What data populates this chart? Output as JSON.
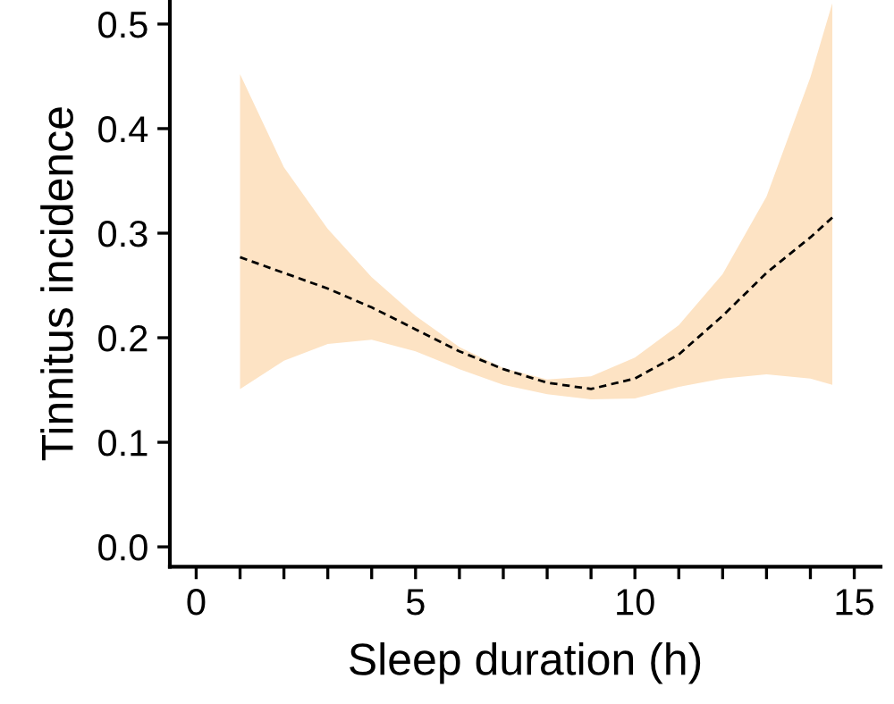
{
  "chart_data": {
    "type": "line",
    "xlabel": "Sleep duration (h)",
    "ylabel": "Tinnitus incidence",
    "xlim": [
      -0.6,
      15.6
    ],
    "ylim": [
      -0.019,
      0.523
    ],
    "xticks": [
      0,
      {
        "value": 1,
        "label": null
      },
      {
        "value": 2,
        "label": null
      },
      {
        "value": 3,
        "label": null
      },
      {
        "value": 4,
        "label": null
      },
      5,
      {
        "value": 6,
        "label": null
      },
      {
        "value": 7,
        "label": null
      },
      {
        "value": 8,
        "label": null
      },
      {
        "value": 9,
        "label": null
      },
      10,
      {
        "value": 11,
        "label": null
      },
      {
        "value": 12,
        "label": null
      },
      {
        "value": 13,
        "label": null
      },
      {
        "value": 14,
        "label": null
      },
      15
    ],
    "yticks": [
      {
        "value": 0,
        "label": "0.0"
      },
      0.1,
      0.2,
      0.3,
      0.4,
      0.5
    ],
    "grid": false,
    "legend": false,
    "marker": "none",
    "line_style": "dashed",
    "series": [
      {
        "color": "#000000",
        "x": [
          1,
          2,
          3,
          4,
          5,
          6,
          7,
          8,
          9,
          10,
          11,
          12,
          13,
          14,
          14.5
        ],
        "values": [
          0.277,
          0.262,
          0.247,
          0.229,
          0.208,
          0.187,
          0.17,
          0.157,
          0.151,
          0.161,
          0.184,
          0.221,
          0.262,
          0.296,
          0.315
        ],
        "lower": [
          0.151,
          0.178,
          0.194,
          0.198,
          0.187,
          0.17,
          0.155,
          0.146,
          0.141,
          0.142,
          0.153,
          0.161,
          0.165,
          0.161,
          0.155
        ],
        "upper": [
          0.452,
          0.363,
          0.304,
          0.258,
          0.221,
          0.191,
          0.171,
          0.16,
          0.163,
          0.181,
          0.212,
          0.261,
          0.335,
          0.449,
          0.52
        ]
      }
    ]
  }
}
